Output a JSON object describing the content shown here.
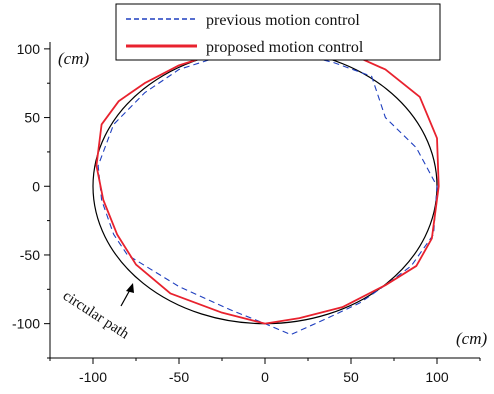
{
  "chart_data": {
    "type": "line",
    "title": "",
    "xlabel": "",
    "ylabel": "",
    "x_unit_label": "(cm)",
    "y_unit_label": "(cm)",
    "xlim": [
      -125,
      125
    ],
    "ylim": [
      -125,
      105
    ],
    "x_ticks": [
      -100,
      -50,
      0,
      50,
      100
    ],
    "y_ticks": [
      -100,
      -50,
      0,
      50,
      100
    ],
    "x_tick_labels": [
      "-100",
      "-50",
      "0",
      "50",
      "100"
    ],
    "y_tick_labels": [
      "-100",
      "-50",
      "0",
      "50",
      "100"
    ],
    "legend": {
      "position": "top-center"
    },
    "annotation": "circular path",
    "reference_circle": {
      "center": [
        0,
        0
      ],
      "radius": 100,
      "color": "#000000"
    },
    "series": [
      {
        "name": "previous motion control",
        "color": "#1f3fbf",
        "style": "dashed",
        "x": [
          0,
          15,
          40,
          62,
          70,
          88,
          100,
          98,
          85,
          70,
          55,
          38,
          15,
          0,
          -20,
          -50,
          -80,
          -88,
          -95,
          -97,
          -88,
          -70,
          -50,
          -20,
          0
        ],
        "y": [
          100,
          98,
          90,
          80,
          50,
          28,
          0,
          -35,
          -58,
          -72,
          -85,
          -95,
          -108,
          -100,
          -90,
          -73,
          -50,
          -35,
          -10,
          15,
          45,
          68,
          85,
          97,
          100
        ]
      },
      {
        "name": "proposed motion control",
        "color": "#e8222e",
        "style": "solid",
        "x": [
          0,
          25,
          52,
          70,
          90,
          100,
          101,
          97,
          88,
          70,
          45,
          20,
          0,
          -25,
          -55,
          -75,
          -86,
          -94,
          -98,
          -95,
          -85,
          -70,
          -50,
          -25,
          0
        ],
        "y": [
          100,
          99,
          95,
          85,
          65,
          35,
          0,
          -38,
          -58,
          -72,
          -88,
          -96,
          -100,
          -92,
          -78,
          -57,
          -35,
          -10,
          15,
          45,
          62,
          75,
          88,
          98,
          100
        ]
      }
    ]
  }
}
